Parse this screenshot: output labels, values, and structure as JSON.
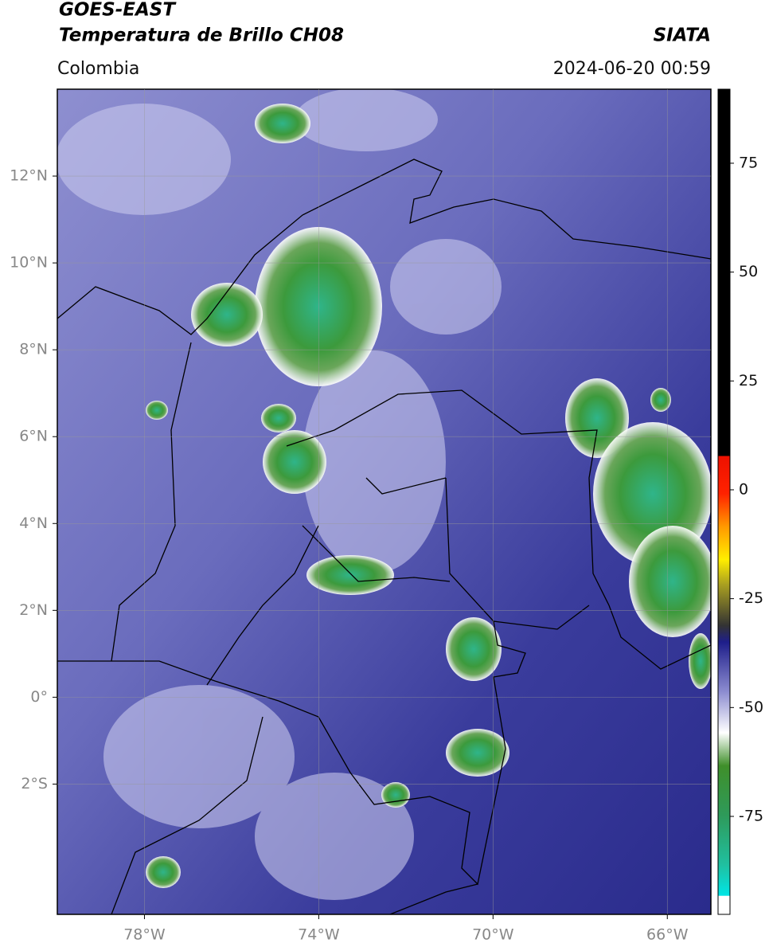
{
  "header": {
    "title": "GOES-EAST",
    "subtitle": "Temperatura de Brillo CH08",
    "source": "SIATA",
    "region": "Colombia",
    "datetime": "2024-06-20 00:59"
  },
  "map": {
    "xlim": [
      -80,
      -65
    ],
    "ylim": [
      -5,
      14
    ],
    "xticks": [
      {
        "value": -78,
        "label": "78°W"
      },
      {
        "value": -74,
        "label": "74°W"
      },
      {
        "value": -70,
        "label": "70°W"
      },
      {
        "value": -66,
        "label": "66°W"
      }
    ],
    "yticks": [
      {
        "value": 12,
        "label": "12°N"
      },
      {
        "value": 10,
        "label": "10°N"
      },
      {
        "value": 8,
        "label": "8°N"
      },
      {
        "value": 6,
        "label": "6°N"
      },
      {
        "value": 4,
        "label": "4°N"
      },
      {
        "value": 2,
        "label": "2°N"
      },
      {
        "value": 0,
        "label": "0°"
      },
      {
        "value": -2,
        "label": "2°S"
      }
    ],
    "grid": true
  },
  "colorbar": {
    "lim": [
      -97.5,
      92
    ],
    "ticks": [
      75,
      50,
      25,
      0,
      -25,
      -50,
      -75
    ]
  }
}
